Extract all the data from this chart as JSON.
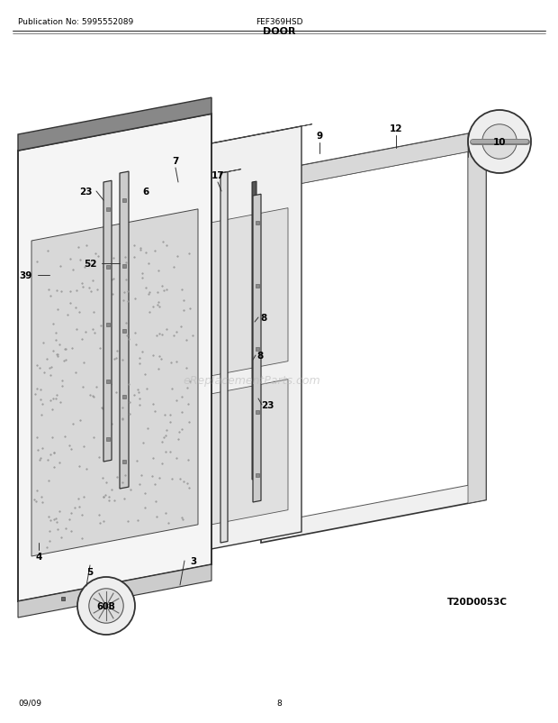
{
  "title": "DOOR",
  "pub_no": "Publication No: 5995552089",
  "model": "FEF369HSD",
  "diagram_code": "T20D0053C",
  "date": "09/09",
  "page": "8",
  "bg_color": "#ffffff",
  "text_color": "#000000",
  "watermark": "eReplacementParts.com",
  "header_sep1": 0.942,
  "header_sep2": 0.933
}
